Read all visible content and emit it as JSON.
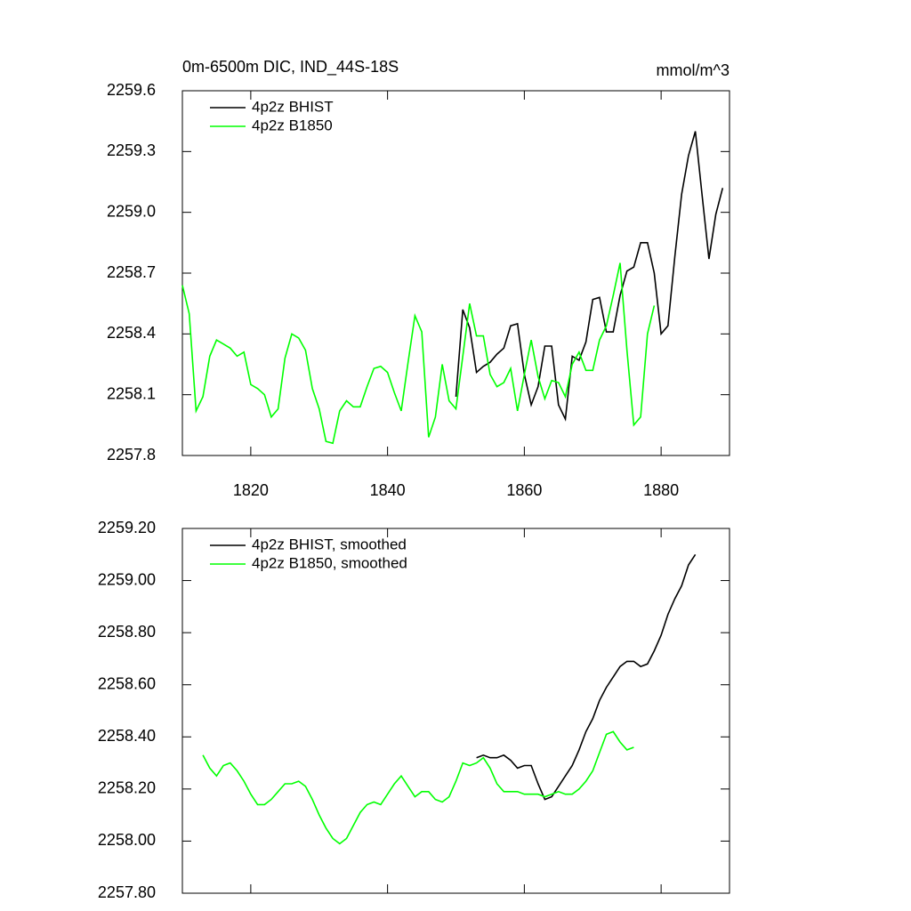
{
  "chart_data": [
    {
      "type": "line",
      "title": "0m-6500m DIC, IND_44S-18S",
      "units": "mmol/m^3",
      "xlim": [
        1810,
        1890
      ],
      "xticks": [
        1820,
        1840,
        1860,
        1880
      ],
      "ylim": [
        2257.8,
        2259.6
      ],
      "yticks": [
        2257.8,
        2258.1,
        2258.4,
        2258.7,
        {
          "value": 2259,
          "label": "2259.0"
        },
        2259.3,
        2259.6
      ],
      "series": [
        {
          "name": "4p2z BHIST",
          "color": "#000000",
          "x": [
            1850,
            1851,
            1852,
            1853,
            1854,
            1855,
            1856,
            1857,
            1858,
            1859,
            1860,
            1861,
            1862,
            1863,
            1864,
            1865,
            1866,
            1867,
            1868,
            1869,
            1870,
            1871,
            1872,
            1873,
            1874,
            1875,
            1876,
            1877,
            1878,
            1879,
            1880,
            1881,
            1882,
            1883,
            1884,
            1885,
            1886,
            1887,
            1888,
            1889
          ],
          "values": [
            2258.09,
            2258.52,
            2258.43,
            2258.21,
            2258.24,
            2258.26,
            2258.3,
            2258.33,
            2258.44,
            2258.45,
            2258.2,
            2258.05,
            2258.14,
            2258.34,
            2258.34,
            2258.05,
            2257.98,
            2258.29,
            2258.27,
            2258.36,
            2258.57,
            2258.58,
            2258.41,
            2258.41,
            2258.59,
            2258.71,
            2258.73,
            2258.85,
            2258.85,
            2258.7,
            2258.4,
            2258.44,
            2258.78,
            2259.09,
            2259.28,
            2259.4,
            2259.08,
            2258.77,
            2258.99,
            2259.12
          ]
        },
        {
          "name": "4p2z B1850",
          "color": "#00ff00",
          "x": [
            1810,
            1811,
            1812,
            1813,
            1814,
            1815,
            1816,
            1817,
            1818,
            1819,
            1820,
            1821,
            1822,
            1823,
            1824,
            1825,
            1826,
            1827,
            1828,
            1829,
            1830,
            1831,
            1832,
            1833,
            1834,
            1835,
            1836,
            1837,
            1838,
            1839,
            1840,
            1841,
            1842,
            1843,
            1844,
            1845,
            1846,
            1847,
            1848,
            1849,
            1850,
            1851,
            1852,
            1853,
            1854,
            1855,
            1856,
            1857,
            1858,
            1859,
            1860,
            1861,
            1862,
            1863,
            1864,
            1865,
            1866,
            1867,
            1868,
            1869,
            1870,
            1871,
            1872,
            1873,
            1874,
            1875,
            1876,
            1877,
            1878,
            1879
          ],
          "values": [
            2258.64,
            2258.5,
            2258.02,
            2258.09,
            2258.29,
            2258.37,
            2258.35,
            2258.33,
            2258.29,
            2258.31,
            2258.15,
            2258.13,
            2258.1,
            2257.99,
            2258.03,
            2258.28,
            2258.4,
            2258.38,
            2258.32,
            2258.13,
            2258.03,
            2257.87,
            2257.86,
            2258.02,
            2258.07,
            2258.04,
            2258.04,
            2258.14,
            2258.23,
            2258.24,
            2258.21,
            2258.11,
            2258.02,
            2258.26,
            2258.49,
            2258.41,
            2257.89,
            2257.99,
            2258.25,
            2258.07,
            2258.03,
            2258.29,
            2258.55,
            2258.39,
            2258.39,
            2258.2,
            2258.14,
            2258.16,
            2258.23,
            2258.02,
            2258.2,
            2258.37,
            2258.19,
            2258.08,
            2258.17,
            2258.16,
            2258.09,
            2258.25,
            2258.31,
            2258.22,
            2258.22,
            2258.37,
            2258.44,
            2258.59,
            2258.75,
            2258.32,
            2257.95,
            2257.99,
            2258.4,
            2258.54
          ]
        }
      ]
    },
    {
      "type": "line",
      "xlim": [
        1810,
        1890
      ],
      "xticks": [
        1820,
        1840,
        1860,
        1880
      ],
      "xtick_labels": false,
      "ylim": [
        2257.8,
        2259.2
      ],
      "yticks": [
        {
          "value": 2257.8,
          "label": "2257.80"
        },
        {
          "value": 2258,
          "label": "2258.00"
        },
        {
          "value": 2258.2,
          "label": "2258.20"
        },
        {
          "value": 2258.4,
          "label": "2258.40"
        },
        {
          "value": 2258.6,
          "label": "2258.60"
        },
        {
          "value": 2258.8,
          "label": "2258.80"
        },
        {
          "value": 2259,
          "label": "2259.00"
        },
        {
          "value": 2259.2,
          "label": "2259.20"
        }
      ],
      "series": [
        {
          "name": "4p2z BHIST, smoothed",
          "color": "#000000",
          "x": [
            1853,
            1854,
            1855,
            1856,
            1857,
            1858,
            1859,
            1860,
            1861,
            1862,
            1863,
            1864,
            1865,
            1866,
            1867,
            1868,
            1869,
            1870,
            1871,
            1872,
            1873,
            1874,
            1875,
            1876,
            1877,
            1878,
            1879,
            1880,
            1881,
            1882,
            1883,
            1884,
            1885
          ],
          "values": [
            2258.32,
            2258.33,
            2258.32,
            2258.32,
            2258.33,
            2258.31,
            2258.28,
            2258.29,
            2258.29,
            2258.22,
            2258.16,
            2258.17,
            2258.21,
            2258.25,
            2258.29,
            2258.35,
            2258.42,
            2258.47,
            2258.54,
            2258.59,
            2258.63,
            2258.67,
            2258.69,
            2258.69,
            2258.67,
            2258.68,
            2258.73,
            2258.79,
            2258.87,
            2258.93,
            2258.98,
            2259.06,
            2259.1
          ]
        },
        {
          "name": "4p2z B1850, smoothed",
          "color": "#00ff00",
          "x": [
            1813,
            1814,
            1815,
            1816,
            1817,
            1818,
            1819,
            1820,
            1821,
            1822,
            1823,
            1824,
            1825,
            1826,
            1827,
            1828,
            1829,
            1830,
            1831,
            1832,
            1833,
            1834,
            1835,
            1836,
            1837,
            1838,
            1839,
            1840,
            1841,
            1842,
            1843,
            1844,
            1845,
            1846,
            1847,
            1848,
            1849,
            1850,
            1851,
            1852,
            1853,
            1854,
            1855,
            1856,
            1857,
            1858,
            1859,
            1860,
            1861,
            1862,
            1863,
            1864,
            1865,
            1866,
            1867,
            1868,
            1869,
            1870,
            1871,
            1872,
            1873,
            1874,
            1875,
            1876
          ],
          "values": [
            2258.33,
            2258.28,
            2258.25,
            2258.29,
            2258.3,
            2258.27,
            2258.23,
            2258.18,
            2258.14,
            2258.14,
            2258.16,
            2258.19,
            2258.22,
            2258.22,
            2258.23,
            2258.21,
            2258.16,
            2258.1,
            2258.05,
            2258.01,
            2257.99,
            2258.01,
            2258.06,
            2258.11,
            2258.14,
            2258.15,
            2258.14,
            2258.18,
            2258.22,
            2258.25,
            2258.21,
            2258.17,
            2258.19,
            2258.19,
            2258.16,
            2258.15,
            2258.17,
            2258.23,
            2258.3,
            2258.29,
            2258.3,
            2258.32,
            2258.28,
            2258.22,
            2258.19,
            2258.19,
            2258.19,
            2258.18,
            2258.18,
            2258.18,
            2258.17,
            2258.18,
            2258.19,
            2258.18,
            2258.18,
            2258.2,
            2258.23,
            2258.27,
            2258.34,
            2258.41,
            2258.42,
            2258.38,
            2258.35,
            2258.36
          ]
        }
      ]
    }
  ]
}
